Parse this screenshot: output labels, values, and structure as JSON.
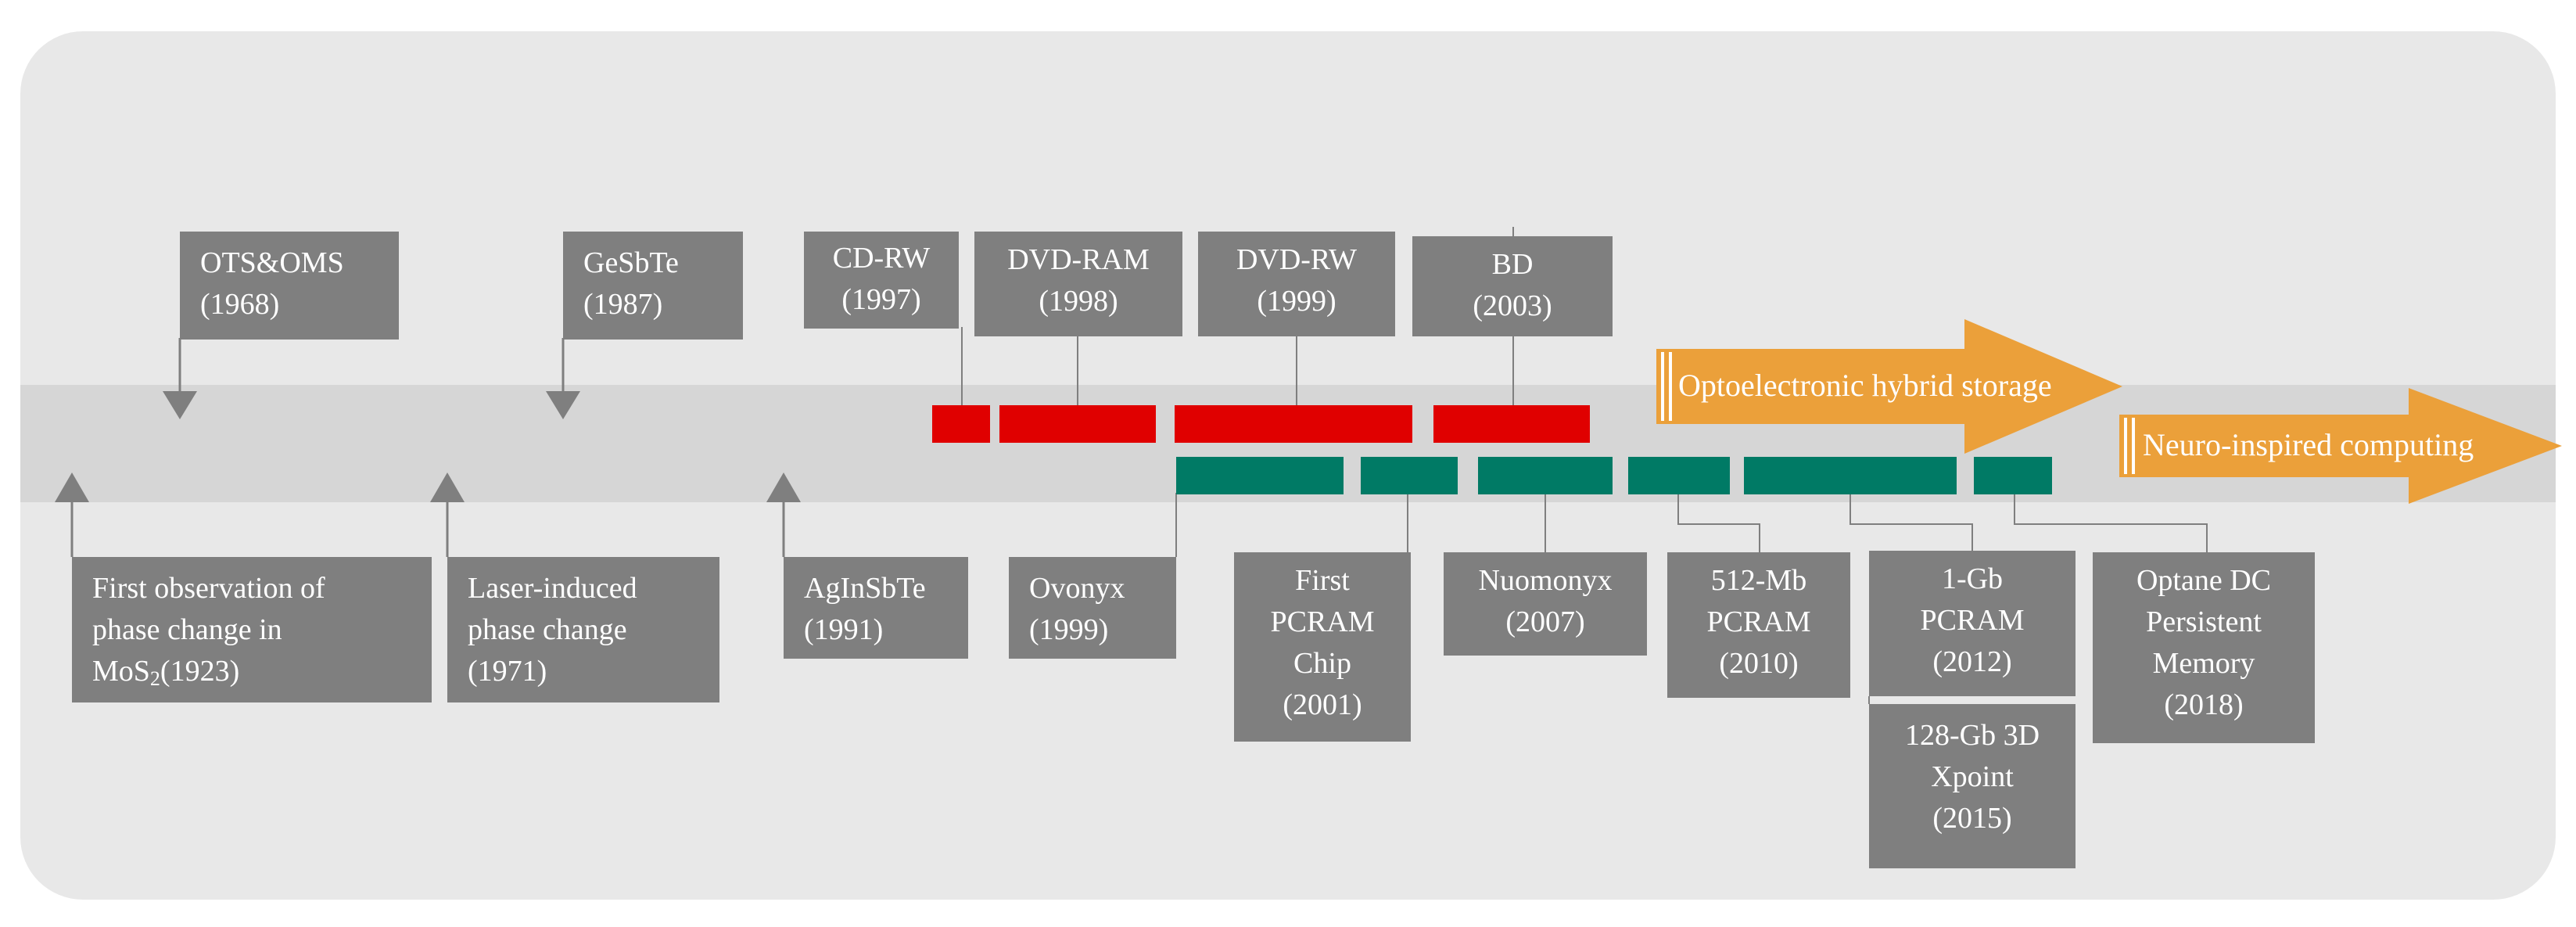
{
  "milestones": {
    "ots": "OTS&OMS\n(1968)",
    "gesbte": "GeSbTe\n(1987)",
    "cdrw": "CD-RW\n(1997)",
    "dvdram": "DVD-RAM\n(1998)",
    "dvdrw": "DVD-RW\n(1999)",
    "bd": "BD\n(2003)",
    "mos2_line1": "First observation of",
    "mos2_line2": "phase change in",
    "mos2_prefix": "MoS",
    "mos2_sub": "2",
    "mos2_suffix": "(1923)",
    "laser": "Laser-induced\nphase change\n(1971)",
    "aginsbte": "AgInSbTe\n(1991)",
    "ovonyx": "Ovonyx\n(1999)",
    "first_pcram": "First\nPCRAM\nChip\n(2001)",
    "nuomonyx": "Nuomonyx\n(2007)",
    "pcram512": "512-Mb\nPCRAM\n(2010)",
    "pcram1gb": "1-Gb\nPCRAM\n(2012)",
    "xpoint": "128-Gb 3D\nXpoint\n(2015)",
    "optane": "Optane DC\nPersistent\nMemory\n(2018)"
  },
  "arrows": {
    "optoelectronic": "Optoelectronic hybrid storage",
    "neuro": "Neuro-inspired computing"
  },
  "colors": {
    "panel": "#e8e8e8",
    "band": "#d6d6d6",
    "box": "#7f7f7f",
    "red_bar": "#e00000",
    "green_bar": "#007a65",
    "orange_arrow": "#eba03a",
    "connector": "#7f7f7f"
  }
}
